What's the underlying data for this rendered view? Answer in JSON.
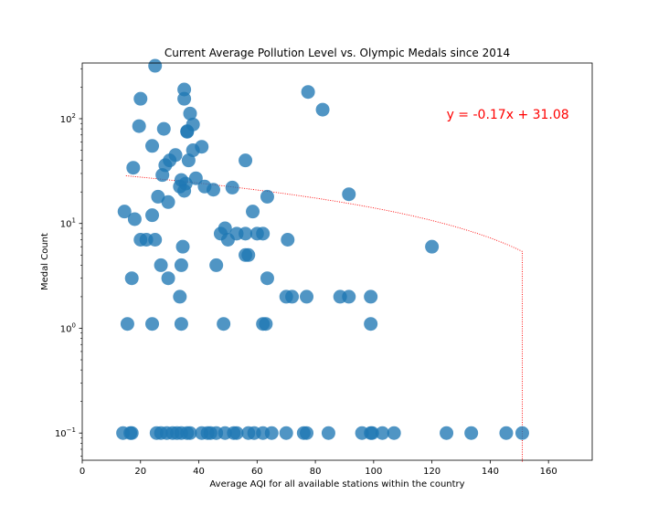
{
  "chart_data": {
    "type": "scatter",
    "title": "Current Average Pollution Level vs. Olympic Medals since 2014",
    "xlabel": "Average AQI for all available stations within the country",
    "ylabel": "Medal Count",
    "xlim": [
      0,
      175
    ],
    "ylim": [
      0.055,
      340
    ],
    "yscale": "log",
    "x_ticks": [
      0,
      20,
      40,
      60,
      80,
      100,
      120,
      140,
      160
    ],
    "y_ticks": [
      {
        "value": 0.1,
        "base": "10",
        "exp": "−1"
      },
      {
        "value": 1,
        "base": "10",
        "exp": "0"
      },
      {
        "value": 10,
        "base": "10",
        "exp": "1"
      },
      {
        "value": 100,
        "base": "10",
        "exp": "2"
      }
    ],
    "grid": false,
    "marker_color": "#1f77b4",
    "line_color": "#ff0000",
    "annotation": {
      "text": "y = -0.17x + 31.08",
      "color": "#ff0000"
    },
    "regression": {
      "slope": -0.17,
      "intercept": 31.08,
      "x_range": [
        15,
        151
      ]
    },
    "points": [
      [
        25,
        320
      ],
      [
        20,
        155
      ],
      [
        35,
        190
      ],
      [
        35,
        155
      ],
      [
        77.5,
        180
      ],
      [
        82.5,
        122
      ],
      [
        37,
        112
      ],
      [
        19.5,
        85
      ],
      [
        28,
        80
      ],
      [
        36,
        76
      ],
      [
        36,
        75
      ],
      [
        38,
        88
      ],
      [
        24,
        55
      ],
      [
        41,
        54
      ],
      [
        38,
        50
      ],
      [
        32,
        45
      ],
      [
        30,
        40
      ],
      [
        36.5,
        40
      ],
      [
        28.5,
        36
      ],
      [
        56,
        40
      ],
      [
        17.5,
        34
      ],
      [
        27.5,
        29
      ],
      [
        39,
        27
      ],
      [
        34,
        26
      ],
      [
        35.5,
        24
      ],
      [
        33.5,
        22.5
      ],
      [
        42,
        22.5
      ],
      [
        35,
        20.5
      ],
      [
        45,
        21
      ],
      [
        51.5,
        22
      ],
      [
        26,
        18
      ],
      [
        29.5,
        16
      ],
      [
        63.5,
        18
      ],
      [
        91.5,
        19
      ],
      [
        14.5,
        13
      ],
      [
        58.5,
        13
      ],
      [
        18,
        11
      ],
      [
        24,
        12
      ],
      [
        20,
        7
      ],
      [
        22,
        7
      ],
      [
        25,
        7
      ],
      [
        49,
        9
      ],
      [
        47.5,
        8
      ],
      [
        53,
        8
      ],
      [
        56,
        8
      ],
      [
        60,
        8
      ],
      [
        62,
        8
      ],
      [
        50,
        7
      ],
      [
        70.5,
        7
      ],
      [
        34.5,
        6
      ],
      [
        120,
        6
      ],
      [
        56,
        5
      ],
      [
        57,
        5
      ],
      [
        27,
        4
      ],
      [
        34,
        4
      ],
      [
        46,
        4
      ],
      [
        17,
        3
      ],
      [
        29.5,
        3
      ],
      [
        63.5,
        3
      ],
      [
        33.5,
        2
      ],
      [
        70,
        2
      ],
      [
        72,
        2
      ],
      [
        77,
        2
      ],
      [
        88.5,
        2
      ],
      [
        91.5,
        2
      ],
      [
        99,
        2
      ],
      [
        15.5,
        1.1
      ],
      [
        24,
        1.1
      ],
      [
        34,
        1.1
      ],
      [
        48.5,
        1.1
      ],
      [
        62,
        1.1
      ],
      [
        63,
        1.1
      ],
      [
        99,
        1.1
      ],
      [
        14,
        0.1
      ],
      [
        16.5,
        0.1
      ],
      [
        17,
        0.1
      ],
      [
        25.5,
        0.1
      ],
      [
        27,
        0.1
      ],
      [
        29,
        0.1
      ],
      [
        31,
        0.1
      ],
      [
        32.5,
        0.1
      ],
      [
        34,
        0.1
      ],
      [
        36,
        0.1
      ],
      [
        37,
        0.1
      ],
      [
        41,
        0.1
      ],
      [
        43,
        0.1
      ],
      [
        44,
        0.1
      ],
      [
        46,
        0.1
      ],
      [
        49,
        0.1
      ],
      [
        52,
        0.1
      ],
      [
        53,
        0.1
      ],
      [
        57,
        0.1
      ],
      [
        59,
        0.1
      ],
      [
        62,
        0.1
      ],
      [
        65,
        0.1
      ],
      [
        70,
        0.1
      ],
      [
        76,
        0.1
      ],
      [
        77,
        0.1
      ],
      [
        84.5,
        0.1
      ],
      [
        96,
        0.1
      ],
      [
        99,
        0.1
      ],
      [
        99.5,
        0.1
      ],
      [
        103,
        0.1
      ],
      [
        107,
        0.1
      ],
      [
        125,
        0.1
      ],
      [
        133.5,
        0.1
      ],
      [
        145.5,
        0.1
      ],
      [
        151,
        0.1
      ]
    ]
  }
}
